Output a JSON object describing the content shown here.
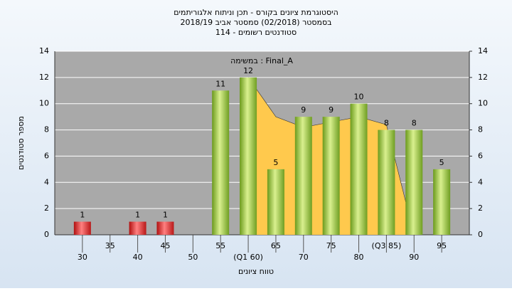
{
  "chart_data": {
    "type": "bar",
    "title": [
      "היסטוגרמת ציונים בקורס - תכן וניתוח אלגוריתמים",
      "בסמסטר  (02/2018)  סמסטר אביב 2018/19",
      "סטודנטים רשומים - 114"
    ],
    "annotation": "במשימה : Final_A",
    "y_label": "מספר סטודנטים",
    "x_label": "טווח ציונים",
    "x": [
      30,
      40,
      45,
      55,
      60,
      65,
      70,
      75,
      80,
      85,
      90,
      95
    ],
    "values": [
      1,
      1,
      1,
      11,
      12,
      5,
      9,
      9,
      10,
      8,
      8,
      5
    ],
    "colors": [
      "red",
      "red",
      "red",
      "green",
      "green",
      "green",
      "green",
      "green",
      "green",
      "green",
      "green",
      "green"
    ],
    "area": {
      "x": [
        60,
        65,
        70,
        75,
        80,
        85,
        88.5
      ],
      "values": [
        12,
        9,
        8.2,
        8.6,
        9,
        8.4,
        2.5
      ],
      "color": "#ffc94d"
    },
    "xlim": [
      25,
      100
    ],
    "xticks": [
      30,
      35,
      40,
      45,
      50,
      55,
      {
        "value": 60,
        "label": "(Q1 60)"
      },
      65,
      70,
      75,
      80,
      {
        "value": 85,
        "label": "(Q3 85)"
      },
      90,
      95
    ],
    "ylim": [
      0,
      14
    ],
    "yticks": [
      0,
      2,
      4,
      6,
      8,
      10,
      12,
      14
    ],
    "y2lim": [
      0,
      14
    ],
    "y2ticks": [
      0,
      2,
      4,
      6,
      8,
      10,
      12,
      14
    ],
    "grid": true
  }
}
